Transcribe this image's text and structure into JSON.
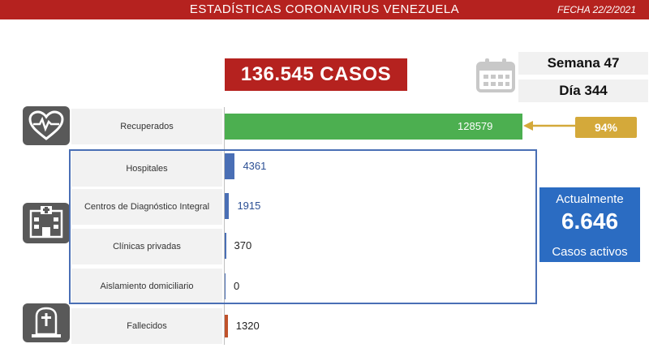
{
  "header": {
    "title": "ESTADÍSTICAS CORONAVIRUS VENEZUELA",
    "date": "FECHA 22/2/2021"
  },
  "total_cases": "136.545 CASOS",
  "week": "Semana 47",
  "day": "Día 344",
  "recovered_percent": "94%",
  "active": {
    "label_top": "Actualmente",
    "value": "6.646",
    "label_bottom": "Casos activos"
  },
  "colors": {
    "header_red": "#b5221f",
    "recovered_green": "#4caf50",
    "active_blue": "#2b6cc2",
    "deaths_orange": "#c0522b",
    "percent_gold": "#d4a93a"
  },
  "icons": [
    "heart-pulse-icon",
    "calendar-icon",
    "hospital-icon",
    "tombstone-icon"
  ],
  "chart_data": {
    "type": "bar",
    "orientation": "horizontal",
    "categories": [
      "Recuperados",
      "Hospitales",
      "Centros de Diagnóstico Integral",
      "Clínicas privadas",
      "Aislamiento domiciliario",
      "Fallecidos"
    ],
    "values": [
      128579,
      4361,
      1915,
      370,
      0,
      1320
    ],
    "value_labels": [
      "128579",
      "4361",
      "1915",
      "370",
      "0",
      "1320"
    ],
    "bar_colors": [
      "#4caf50",
      "#4a6fb5",
      "#4a6fb5",
      "#4a6fb5",
      "#4a6fb5",
      "#c0522b"
    ],
    "xlim": [
      0,
      128579
    ]
  }
}
